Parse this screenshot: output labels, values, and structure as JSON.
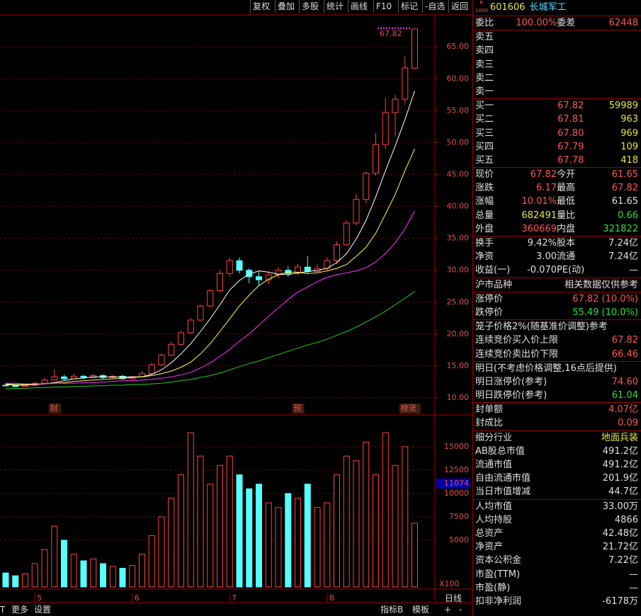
{
  "toolbar": [
    "复权",
    "叠加",
    "多股",
    "统计",
    "画线",
    "F10",
    "标记",
    "-自选",
    "返回"
  ],
  "bottom_left": [
    "T",
    "更多",
    "设置"
  ],
  "bottom_right": [
    "指标B",
    "模板",
    "日线",
    "+",
    "-"
  ],
  "chart_data": {
    "type": "candlestick",
    "annotation": "67.82",
    "ylim": [
      7.45,
      69.9
    ],
    "yticks": [
      {
        "value": 10,
        "label": "10.00"
      },
      {
        "value": 15,
        "label": "15.00"
      },
      {
        "value": 20,
        "label": "20.00"
      },
      {
        "value": 25,
        "label": "25.00"
      },
      {
        "value": 30,
        "label": "30.00"
      },
      {
        "value": 35,
        "label": "35.00"
      },
      {
        "value": 40,
        "label": "40.00"
      },
      {
        "value": 45,
        "label": "45.00"
      },
      {
        "value": 50,
        "label": "50.00"
      },
      {
        "value": 55,
        "label": "55.00"
      },
      {
        "value": 60,
        "label": "60.00"
      },
      {
        "value": 65,
        "label": "65.00"
      }
    ],
    "candles": [
      [
        12.0,
        11.9,
        12.1,
        11.8
      ],
      [
        11.9,
        11.8,
        12.0,
        11.7
      ],
      [
        11.8,
        12.0,
        12.1,
        11.7
      ],
      [
        12.0,
        12.3,
        12.5,
        11.9
      ],
      [
        12.3,
        12.8,
        13.2,
        12.2
      ],
      [
        12.8,
        13.3,
        14.5,
        12.7
      ],
      [
        13.3,
        13.0,
        13.6,
        12.8
      ],
      [
        13.0,
        13.4,
        13.8,
        12.9
      ],
      [
        13.4,
        13.2,
        13.6,
        13.0
      ],
      [
        13.2,
        13.5,
        13.8,
        13.1
      ],
      [
        13.5,
        13.2,
        13.7,
        13.0
      ],
      [
        13.2,
        13.4,
        13.6,
        13.0
      ],
      [
        13.4,
        13.0,
        13.6,
        12.9
      ],
      [
        13.0,
        13.3,
        13.5,
        12.9
      ],
      [
        13.3,
        13.8,
        14.2,
        13.2
      ],
      [
        13.8,
        15.2,
        15.5,
        13.7
      ],
      [
        15.2,
        16.7,
        17.0,
        15.0
      ],
      [
        16.7,
        18.4,
        18.8,
        16.5
      ],
      [
        18.4,
        20.2,
        20.5,
        18.2
      ],
      [
        20.2,
        22.2,
        22.5,
        20.0
      ],
      [
        22.2,
        24.4,
        24.6,
        22.0
      ],
      [
        24.4,
        26.8,
        27.0,
        24.2
      ],
      [
        26.8,
        29.5,
        30.0,
        26.5
      ],
      [
        29.5,
        31.5,
        32.0,
        29.0
      ],
      [
        31.5,
        30.0,
        32.0,
        29.5
      ],
      [
        30.0,
        29.0,
        30.3,
        28.0
      ],
      [
        29.0,
        28.5,
        29.8,
        27.5
      ],
      [
        28.5,
        29.3,
        29.8,
        27.8
      ],
      [
        29.3,
        30.0,
        30.5,
        28.8
      ],
      [
        30.0,
        29.5,
        30.6,
        29.0
      ],
      [
        29.5,
        30.5,
        31.0,
        29.2
      ],
      [
        30.5,
        29.8,
        32.2,
        29.5
      ],
      [
        29.8,
        30.3,
        31.0,
        29.5
      ],
      [
        30.3,
        31.5,
        32.0,
        30.0
      ],
      [
        31.5,
        34.0,
        34.5,
        31.0
      ],
      [
        34.0,
        37.4,
        37.8,
        33.8
      ],
      [
        37.4,
        41.1,
        42.0,
        37.0
      ],
      [
        41.1,
        45.2,
        45.5,
        40.5
      ],
      [
        45.2,
        49.7,
        51.5,
        44.8
      ],
      [
        49.7,
        54.7,
        57.0,
        49.0
      ],
      [
        54.7,
        56.8,
        57.5,
        51.0
      ],
      [
        56.8,
        61.7,
        63.5,
        56.0
      ],
      [
        61.65,
        67.82,
        67.82,
        61.65
      ]
    ],
    "ma": [
      {
        "color": "#ffffff",
        "values": [
          12.1,
          12.0,
          12.0,
          12.1,
          12.2,
          12.4,
          12.7,
          13.0,
          13.1,
          13.3,
          13.3,
          13.3,
          13.3,
          13.3,
          13.3,
          13.7,
          14.4,
          15.5,
          16.9,
          18.5,
          20.4,
          22.4,
          24.6,
          26.9,
          28.4,
          29.4,
          29.9,
          29.7,
          29.4,
          29.3,
          29.6,
          29.8,
          30.0,
          30.3,
          31.2,
          32.6,
          34.9,
          37.8,
          41.5,
          45.6,
          49.5,
          53.6,
          58.1
        ]
      },
      {
        "color": "#ffff55",
        "values": [
          12.2,
          12.1,
          12.1,
          12.1,
          12.2,
          12.3,
          12.4,
          12.6,
          12.7,
          12.8,
          12.9,
          13.0,
          13.1,
          13.2,
          13.3,
          13.5,
          13.8,
          14.2,
          14.8,
          15.6,
          16.9,
          18.5,
          20.4,
          22.4,
          24.4,
          26.1,
          27.6,
          28.6,
          29.3,
          29.7,
          29.7,
          29.5,
          29.6,
          29.9,
          30.3,
          30.9,
          32.2,
          33.6,
          35.8,
          38.8,
          41.9,
          45.6,
          49.0
        ]
      },
      {
        "color": "#ff33ff",
        "values": [
          12.3,
          12.3,
          12.2,
          12.2,
          12.2,
          12.3,
          12.3,
          12.3,
          12.4,
          12.4,
          12.5,
          12.6,
          12.7,
          12.7,
          12.8,
          12.9,
          13.1,
          13.3,
          13.6,
          14.0,
          14.7,
          15.5,
          16.5,
          17.6,
          18.9,
          20.0,
          21.4,
          22.8,
          24.1,
          25.4,
          26.6,
          27.4,
          28.2,
          28.9,
          29.3,
          29.6,
          29.9,
          30.4,
          31.3,
          32.6,
          34.3,
          36.5,
          39.3
        ]
      },
      {
        "color": "#22cc22",
        "values": [
          11.4,
          11.5,
          11.5,
          11.6,
          11.6,
          11.7,
          11.7,
          11.8,
          11.8,
          11.9,
          11.9,
          12.0,
          12.0,
          12.1,
          12.1,
          12.2,
          12.3,
          12.5,
          12.7,
          12.9,
          13.2,
          13.5,
          13.9,
          14.4,
          14.9,
          15.4,
          15.8,
          16.3,
          16.8,
          17.3,
          17.8,
          18.3,
          18.7,
          19.2,
          19.8,
          20.4,
          21.1,
          21.9,
          22.7,
          23.6,
          24.6,
          25.6,
          26.7
        ]
      }
    ],
    "volume": {
      "unit": "X100",
      "ylim": [
        0,
        18100
      ],
      "yticks": [
        5000,
        7500,
        10000,
        12500,
        15000
      ],
      "ma_label": 11074,
      "values": [
        1500,
        1200,
        1400,
        2500,
        4000,
        6500,
        5000,
        3500,
        2800,
        3000,
        2500,
        2200,
        2000,
        2300,
        3500,
        5500,
        7500,
        9500,
        12000,
        16500,
        14000,
        11000,
        13000,
        14000,
        12000,
        10500,
        11000,
        9000,
        8500,
        10000,
        9500,
        11000,
        8500,
        9000,
        12000,
        14000,
        13500,
        15500,
        12000,
        16500,
        13000,
        15000,
        6824
      ]
    },
    "months": [
      {
        "label": "5",
        "index": 3
      },
      {
        "label": "6",
        "index": 13
      },
      {
        "label": "7",
        "index": 23
      },
      {
        "label": "8",
        "index": 33
      }
    ],
    "events": [
      {
        "label": "财",
        "index": 5
      },
      {
        "label": "预",
        "index": 30
      },
      {
        "label": "榜涨",
        "index": 41
      }
    ]
  },
  "panel": {
    "badge_top": "R",
    "badge_bottom": "1000",
    "code": "601606",
    "name": "长城军工",
    "weibi": [
      "委比",
      "100.00%",
      "委差",
      "62448"
    ],
    "sell": [
      "卖五",
      "卖四",
      "卖三",
      "卖二",
      "卖一"
    ],
    "buy": [
      [
        "买一",
        "67.82",
        "59989"
      ],
      [
        "买二",
        "67.81",
        "963"
      ],
      [
        "买三",
        "67.80",
        "969"
      ],
      [
        "买四",
        "67.79",
        "109"
      ],
      [
        "买五",
        "67.78",
        "418"
      ]
    ],
    "stats": [
      [
        "现价",
        "67.82",
        "今开",
        "61.65"
      ],
      [
        "涨跌",
        "6.17",
        "最高",
        "67.82"
      ],
      [
        "涨幅",
        "10.01%",
        "最低",
        "61.65"
      ],
      [
        "总量",
        "682491",
        "量比",
        "0.66"
      ],
      [
        "外盘",
        "360669",
        "内盘",
        "321822"
      ]
    ],
    "stats2": [
      [
        "换手",
        "9.42%",
        "股本",
        "7.24亿"
      ],
      [
        "净资",
        "3.00",
        "流通",
        "7.24亿"
      ],
      [
        "收益(一)",
        "-0.070",
        "PE(动)",
        "—"
      ]
    ],
    "market": [
      "沪市品种",
      "相关数据仅供参考"
    ],
    "limits": [
      [
        "涨停价",
        "67.82 (10.0%)"
      ],
      [
        "跌停价",
        "55.49 (10.0%)"
      ]
    ],
    "cage_title": "笼子价格2%(随基准价调整)参考",
    "cage": [
      [
        "连续竞价买入价上限",
        "67.82"
      ],
      [
        "连续竞价卖出价下限",
        "66.46"
      ]
    ],
    "tomorrow_title": "明日(不考虑价格调整,16点后提供)",
    "tomorrow": [
      [
        "明日涨停价(参考)",
        "74.60"
      ],
      [
        "明日跌停价(参考)",
        "61.04"
      ]
    ],
    "seal": [
      [
        "封单额",
        "4.07亿"
      ],
      [
        "封成比",
        "0.09"
      ]
    ],
    "industry": [
      [
        "细分行业",
        "地面兵装"
      ],
      [
        "AB股总市值",
        "491.2亿"
      ],
      [
        "流通市值",
        "491.2亿"
      ],
      [
        "自由流通市值",
        "201.9亿"
      ],
      [
        "当日市值增减",
        "44.7亿"
      ]
    ],
    "per": [
      [
        "人均市值",
        "33.00万"
      ],
      [
        "人均持股",
        "4866"
      ],
      [
        "总资产",
        "42.48亿"
      ],
      [
        "净资产",
        "21.72亿"
      ],
      [
        "资本公积金",
        "7.22亿"
      ],
      [
        "市盈(TTM)",
        "—"
      ],
      [
        "市盈(静)",
        "—"
      ],
      [
        "扣非净利润",
        "-6178万"
      ]
    ]
  }
}
